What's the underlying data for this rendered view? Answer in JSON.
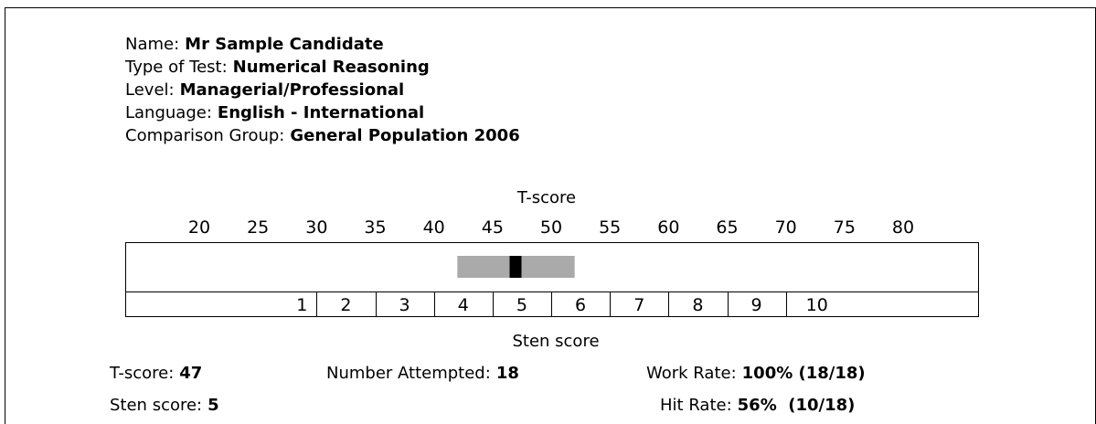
{
  "candidate": {
    "fields": [
      {
        "label": "Name:",
        "value": "Mr Sample Candidate"
      },
      {
        "label": "Type of Test:",
        "value": "Numerical Reasoning"
      },
      {
        "label": "Level:",
        "value": "Managerial/Professional"
      },
      {
        "label": "Language:",
        "value": "English - International"
      },
      {
        "label": "Comparison Group:",
        "value": "General Population 2006"
      }
    ]
  },
  "chart": {
    "title": "T-score",
    "ticks": [
      20,
      25,
      30,
      35,
      40,
      45,
      50,
      55,
      60,
      65,
      70,
      75,
      80
    ],
    "sten_label": "Sten score",
    "stens": [
      1,
      2,
      3,
      4,
      5,
      6,
      7,
      8,
      9,
      10
    ],
    "band": [
      42,
      52
    ],
    "score": 47
  },
  "summary": {
    "rows": [
      [
        {
          "label": "T-score:",
          "value": "47"
        },
        {
          "label": "Number Attempted:",
          "value": "18"
        },
        {
          "label": "Work Rate:",
          "value": "100% (18/18)"
        }
      ],
      [
        {
          "label": "Sten score:",
          "value": "5"
        },
        {
          "label": "Hit Rate:",
          "value": "56%  (10/18)"
        }
      ]
    ]
  }
}
